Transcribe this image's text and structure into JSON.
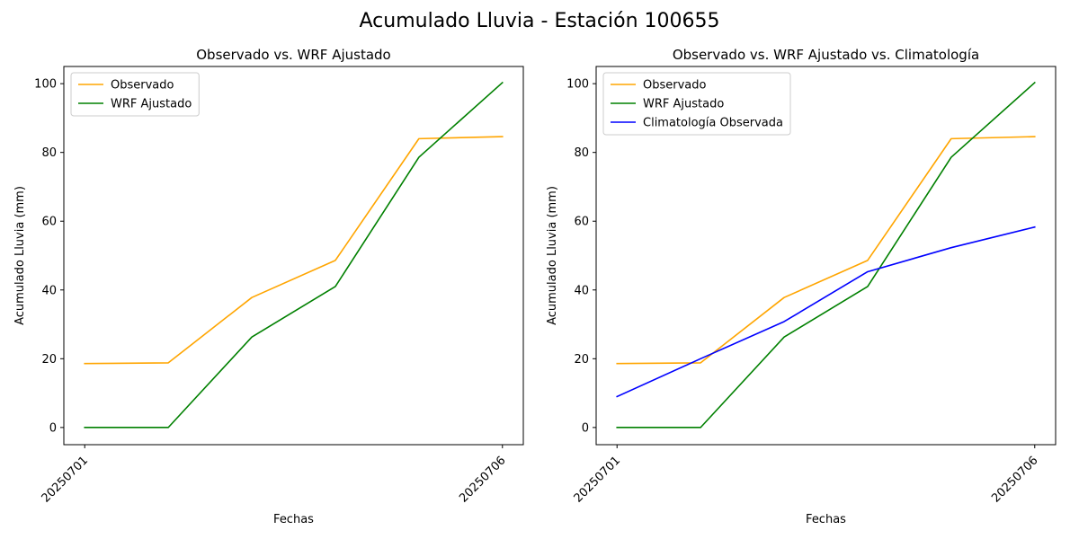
{
  "figure_title": "Acumulado Lluvia - Estación 100655",
  "chart_data": [
    {
      "type": "line",
      "title": "Observado vs. WRF Ajustado",
      "xlabel": "Fechas",
      "ylabel": "Acumulado Lluvia (mm)",
      "x": [
        1,
        2,
        3,
        4,
        5,
        6
      ],
      "x_tick_values": [
        1,
        6
      ],
      "x_tick_labels": [
        "20250701",
        "20250706"
      ],
      "xlim": [
        0.75,
        6.25
      ],
      "ylim": [
        -5,
        105
      ],
      "y_ticks": [
        0,
        20,
        40,
        60,
        80,
        100
      ],
      "grid": false,
      "legend_position": "upper-left",
      "series": [
        {
          "name": "Observado",
          "color": "#ffa500",
          "values": [
            18.6,
            18.8,
            37.8,
            48.6,
            84.0,
            84.6
          ]
        },
        {
          "name": "WRF Ajustado",
          "color": "#008000",
          "values": [
            0,
            0,
            26.3,
            41.0,
            78.6,
            100.3
          ]
        }
      ]
    },
    {
      "type": "line",
      "title": "Observado vs. WRF Ajustado vs. Climatología",
      "xlabel": "Fechas",
      "ylabel": "Acumulado Lluvia (mm)",
      "x": [
        1,
        2,
        3,
        4,
        5,
        6
      ],
      "x_tick_values": [
        1,
        6
      ],
      "x_tick_labels": [
        "20250701",
        "20250706"
      ],
      "xlim": [
        0.75,
        6.25
      ],
      "ylim": [
        -5,
        105
      ],
      "y_ticks": [
        0,
        20,
        40,
        60,
        80,
        100
      ],
      "grid": false,
      "legend_position": "upper-left",
      "series": [
        {
          "name": "Observado",
          "color": "#ffa500",
          "values": [
            18.6,
            18.8,
            37.8,
            48.6,
            84.0,
            84.6
          ]
        },
        {
          "name": "WRF Ajustado",
          "color": "#008000",
          "values": [
            0,
            0,
            26.3,
            41.0,
            78.6,
            100.3
          ]
        },
        {
          "name": "Climatología Observada",
          "color": "#0000ff",
          "values": [
            9.0,
            20.0,
            30.8,
            45.3,
            52.3,
            58.3
          ]
        }
      ]
    }
  ]
}
